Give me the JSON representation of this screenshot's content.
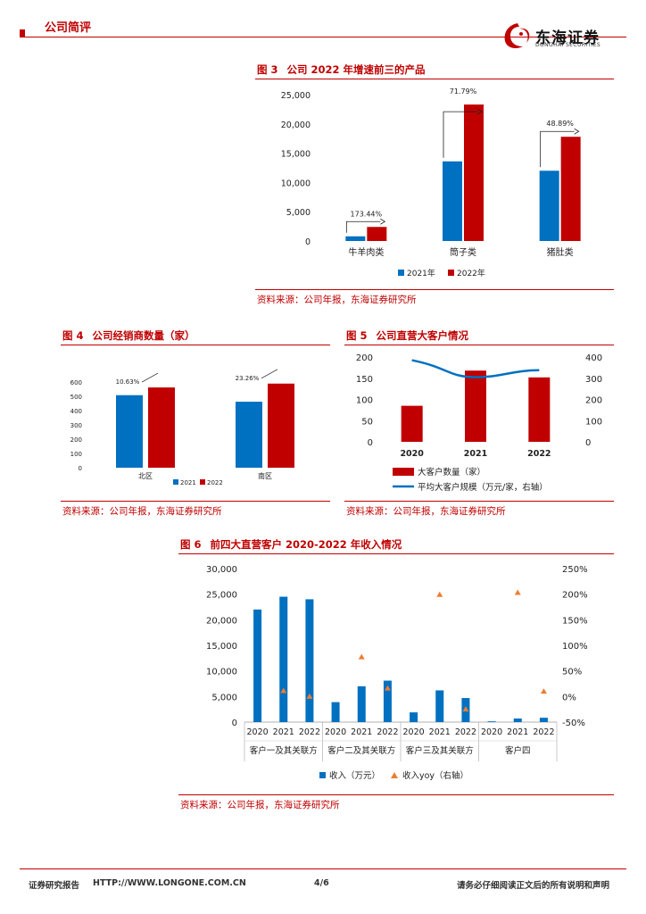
{
  "header": {
    "section": "公司简评",
    "logo_cn": "东海证券",
    "logo_en": "DONGHAI SECURITIES"
  },
  "fig3": {
    "num": "图 3",
    "title": "公司 2022 年增速前三的产品",
    "source": "资料来源：公司年报，东海证券研究所",
    "chart_data": {
      "type": "bar",
      "categories": [
        "牛羊肉类",
        "筒子类",
        "猪肚类"
      ],
      "series": [
        {
          "name": "2021年",
          "values": [
            800,
            13600,
            12000
          ],
          "color": "#0070c0"
        },
        {
          "name": "2022年",
          "values": [
            2400,
            23300,
            17800
          ],
          "color": "#c00000"
        }
      ],
      "growth_labels": [
        "173.44%",
        "71.79%",
        "48.89%"
      ],
      "yticks": [
        "0",
        "5,000",
        "10,000",
        "15,000",
        "20,000",
        "25,000"
      ],
      "ylim": [
        0,
        25000
      ]
    }
  },
  "fig4": {
    "num": "图 4",
    "title": "公司经销商数量（家）",
    "source": "资料来源：公司年报，东海证券研究所",
    "chart_data": {
      "type": "bar",
      "categories": [
        "北区",
        "南区"
      ],
      "series": [
        {
          "name": "2021",
          "values": [
            508,
            462
          ],
          "color": "#0070c0"
        },
        {
          "name": "2022",
          "values": [
            562,
            589
          ],
          "color": "#c00000"
        }
      ],
      "growth_labels": [
        "10.63%",
        "23.26%"
      ],
      "yticks": [
        "0",
        "100",
        "200",
        "300",
        "400",
        "500",
        "600"
      ],
      "ylim": [
        0,
        600
      ]
    }
  },
  "fig5": {
    "num": "图 5",
    "title": "公司直营大客户情况",
    "source": "资料来源：公司年报，东海证券研究所",
    "chart_data": {
      "type": "bar",
      "categories": [
        "2020",
        "2021",
        "2022"
      ],
      "series": [
        {
          "name": "大客户数量（家）",
          "values": [
            85,
            168,
            152
          ],
          "color": "#c00000"
        },
        {
          "name": "平均大客户规模（万元/家，右轴）",
          "values": [
            385,
            305,
            338
          ],
          "color": "#0070c0",
          "axis": "right"
        }
      ],
      "yticks_left": [
        "0",
        "50",
        "100",
        "150",
        "200"
      ],
      "yticks_right": [
        "0",
        "100",
        "200",
        "300",
        "400"
      ],
      "ylim_left": [
        0,
        200
      ],
      "ylim_right": [
        0,
        400
      ]
    }
  },
  "fig6": {
    "num": "图 6",
    "title": "前四大直营客户 2020-2022 年收入情况",
    "source": "资料来源：公司年报，东海证券研究所",
    "chart_data": {
      "type": "bar",
      "groups": [
        {
          "name": "客户一及其关联方",
          "years": [
            "2020",
            "2021",
            "2022"
          ],
          "revenue": [
            22000,
            24500,
            24000
          ],
          "yoy": [
            null,
            11,
            0
          ]
        },
        {
          "name": "客户二及其关联方",
          "years": [
            "2020",
            "2021",
            "2022"
          ],
          "revenue": [
            3900,
            7000,
            8100
          ],
          "yoy": [
            null,
            77,
            16
          ]
        },
        {
          "name": "客户三及其关联方",
          "years": [
            "2020",
            "2021",
            "2022"
          ],
          "revenue": [
            1900,
            6200,
            4700
          ],
          "yoy": [
            null,
            199,
            -25
          ]
        },
        {
          "name": "客户四",
          "years": [
            "2020",
            "2021",
            "2022"
          ],
          "revenue": [
            150,
            700,
            850
          ],
          "yoy": [
            null,
            203,
            10
          ]
        }
      ],
      "series": [
        {
          "name": "收入（万元）",
          "color": "#0070c0"
        },
        {
          "name": "收入yoy（右轴）",
          "color": "#ed7d31",
          "axis": "right"
        }
      ],
      "yticks_left": [
        "0",
        "5,000",
        "10,000",
        "15,000",
        "20,000",
        "25,000",
        "30,000"
      ],
      "yticks_right": [
        "-50%",
        "0%",
        "50%",
        "100%",
        "150%",
        "200%",
        "250%"
      ],
      "ylim_left": [
        0,
        30000
      ],
      "ylim_right": [
        -50,
        250
      ]
    }
  },
  "footer": {
    "left": "证券研究报告",
    "url": "HTTP://WWW.LONGONE.COM.CN",
    "page": "4/6",
    "right": "请务必仔细阅读正文后的所有说明和声明"
  }
}
